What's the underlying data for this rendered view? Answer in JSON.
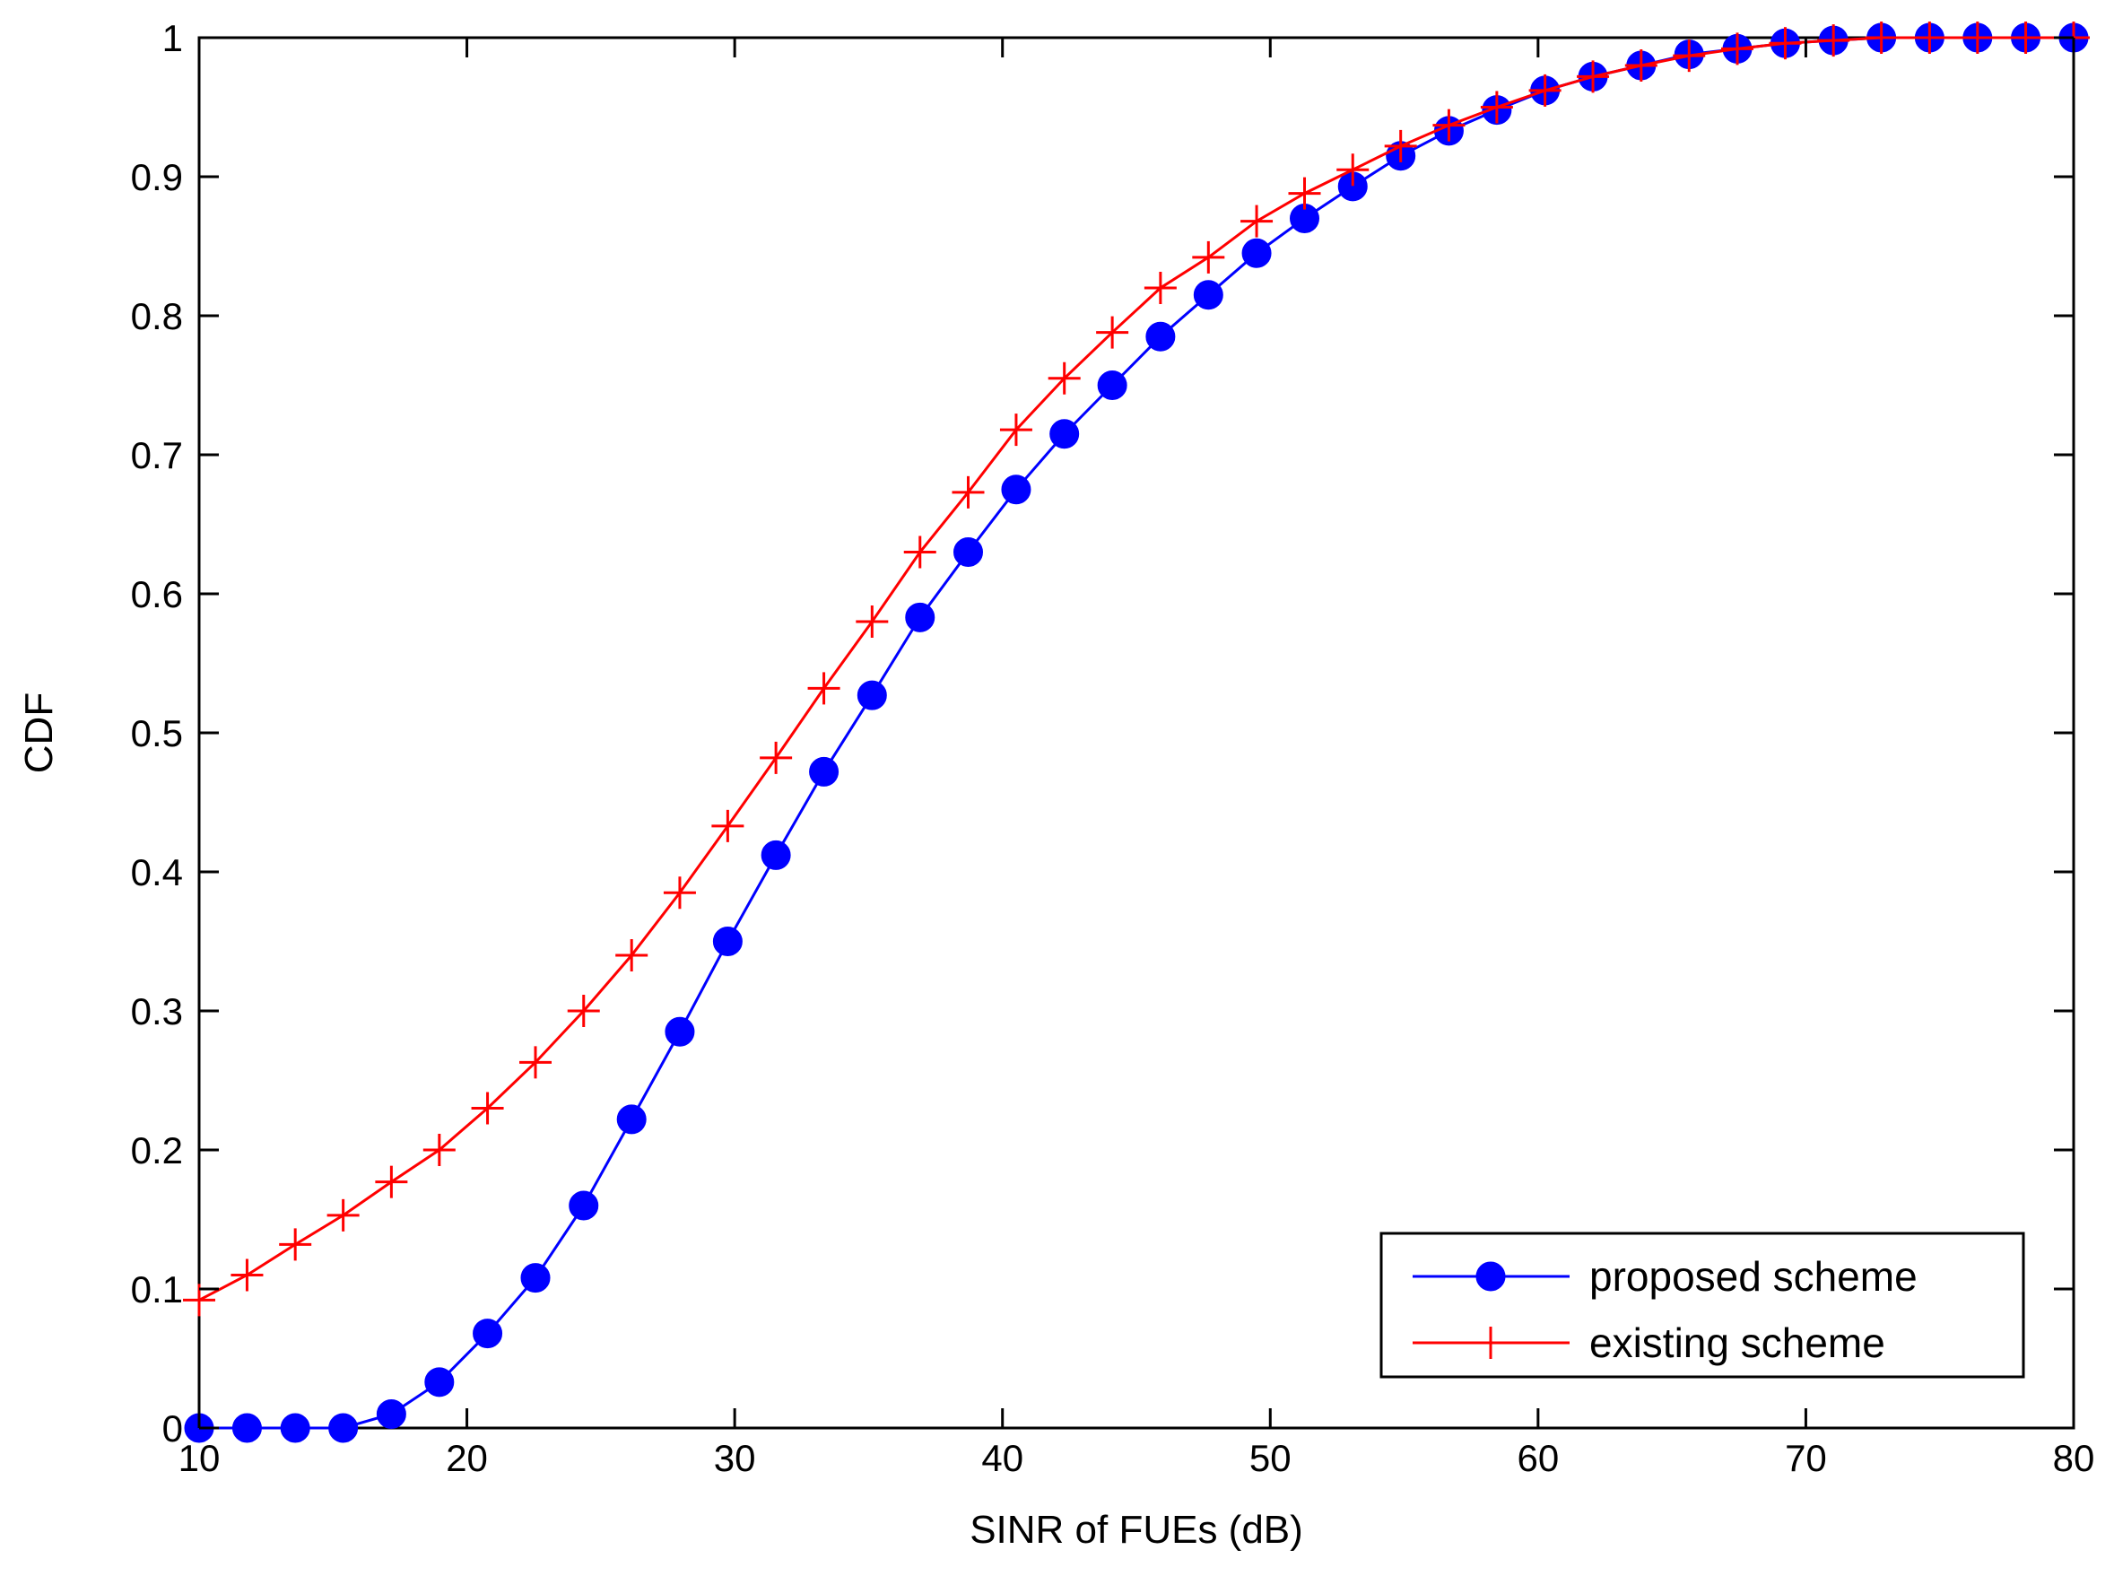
{
  "chart_data": {
    "type": "line",
    "title": "",
    "xlabel": "SINR of FUEs (dB)",
    "ylabel": "CDF",
    "xlim": [
      10,
      80
    ],
    "ylim": [
      0,
      1
    ],
    "xticks": [
      10,
      20,
      30,
      40,
      50,
      60,
      70,
      80
    ],
    "yticks": [
      0,
      0.1,
      0.2,
      0.3,
      0.4,
      0.5,
      0.6,
      0.7,
      0.8,
      0.9,
      1
    ],
    "ytick_labels": [
      "0",
      "0.1",
      "0.2",
      "0.3",
      "0.4",
      "0.5",
      "0.6",
      "0.7",
      "0.8",
      "0.9",
      "1"
    ],
    "grid": false,
    "legend_position": "bottom-right",
    "x": [
      10,
      11.79,
      13.59,
      15.38,
      17.18,
      18.97,
      20.77,
      22.56,
      24.36,
      26.15,
      27.95,
      29.74,
      31.54,
      33.33,
      35.13,
      36.92,
      38.72,
      40.51,
      42.31,
      44.1,
      45.9,
      47.69,
      49.49,
      51.28,
      53.08,
      54.87,
      56.67,
      58.46,
      60.26,
      62.05,
      63.85,
      65.64,
      67.44,
      69.23,
      71.03,
      72.82,
      74.62,
      76.41,
      78.21,
      80
    ],
    "series": [
      {
        "name": "proposed scheme",
        "color": "#0000ff",
        "marker": "filled-circle",
        "values": [
          0,
          0,
          0,
          0,
          0.01,
          0.033,
          0.068,
          0.108,
          0.16,
          0.222,
          0.285,
          0.35,
          0.412,
          0.472,
          0.527,
          0.583,
          0.63,
          0.675,
          0.715,
          0.75,
          0.785,
          0.815,
          0.845,
          0.87,
          0.893,
          0.915,
          0.933,
          0.948,
          0.962,
          0.972,
          0.98,
          0.988,
          0.992,
          0.996,
          0.998,
          1,
          1,
          1,
          1,
          1
        ]
      },
      {
        "name": "existing scheme",
        "color": "#ff0000",
        "marker": "plus",
        "values": [
          0.092,
          0.11,
          0.132,
          0.153,
          0.177,
          0.2,
          0.23,
          0.263,
          0.3,
          0.34,
          0.385,
          0.433,
          0.482,
          0.532,
          0.58,
          0.63,
          0.673,
          0.718,
          0.755,
          0.788,
          0.82,
          0.842,
          0.868,
          0.888,
          0.905,
          0.922,
          0.937,
          0.95,
          0.962,
          0.972,
          0.98,
          0.987,
          0.992,
          0.996,
          0.998,
          1,
          1,
          1,
          1,
          1
        ]
      }
    ]
  }
}
